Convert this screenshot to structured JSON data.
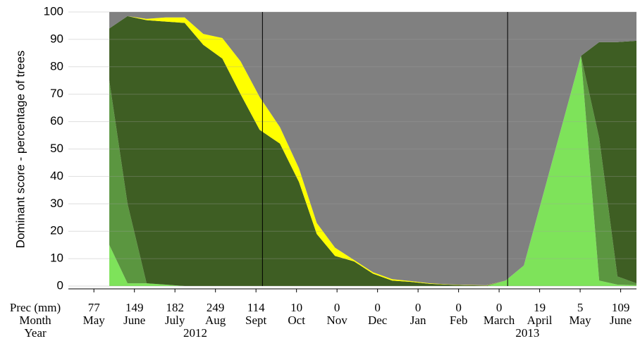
{
  "chart_data": {
    "type": "stacked_area",
    "y_label": "Dominant score - percentage of trees",
    "row_labels": [
      "Prec (mm)",
      "Month",
      "Year"
    ],
    "xlim": [
      -0.63,
      13.39
    ],
    "ylim": [
      0,
      100
    ],
    "yticks": [
      0,
      10,
      20,
      30,
      40,
      50,
      60,
      70,
      80,
      90,
      100
    ],
    "grid": true,
    "xticks": [
      {
        "value": 0,
        "label": "May"
      },
      {
        "value": 1,
        "label": "June"
      },
      {
        "value": 2,
        "label": "July"
      },
      {
        "value": 3,
        "label": "Aug"
      },
      {
        "value": 4,
        "label": "Sept"
      },
      {
        "value": 5,
        "label": "Oct"
      },
      {
        "value": 6,
        "label": "Nov"
      },
      {
        "value": 7,
        "label": "Dec"
      },
      {
        "value": 8,
        "label": "Jan"
      },
      {
        "value": 9,
        "label": "Feb"
      },
      {
        "value": 10,
        "label": "March"
      },
      {
        "value": 11,
        "label": "April"
      },
      {
        "value": 12,
        "label": "May"
      },
      {
        "value": 13,
        "label": "June"
      }
    ],
    "precipitation_mm": [
      77,
      149,
      182,
      249,
      114,
      10,
      0,
      0,
      0,
      0,
      0,
      19,
      5,
      109
    ],
    "year_labels": [
      {
        "value": 2.5,
        "label": "2012"
      },
      {
        "value": 10.7,
        "label": "2013"
      }
    ],
    "vlines": [
      4.16,
      10.21
    ],
    "x": [
      0.38,
      0.83,
      1.3,
      1.77,
      2.24,
      2.7,
      3.17,
      3.62,
      4.09,
      4.59,
      5.06,
      5.5,
      5.95,
      6.42,
      6.89,
      7.36,
      7.83,
      8.3,
      8.75,
      9.22,
      9.69,
      10.16,
      10.61,
      12.02,
      12.47,
      12.92,
      13.39
    ],
    "series": [
      {
        "color": "#7ee35a",
        "values": [
          15,
          1,
          1,
          0.5,
          0,
          0,
          0,
          0,
          0,
          0,
          0,
          0,
          0,
          0,
          0,
          0,
          0,
          0,
          0,
          0,
          0,
          2,
          7.5,
          84,
          2,
          0.5,
          0.3
        ]
      },
      {
        "color": "#5b9640",
        "values": [
          60,
          29,
          0,
          0,
          0,
          0,
          0,
          0,
          0,
          0,
          0,
          0,
          0,
          0,
          0,
          0,
          0,
          0,
          0,
          0,
          0,
          0,
          0,
          0,
          52,
          3,
          0.7
        ]
      },
      {
        "color": "#3e5e23",
        "values": [
          19,
          68.5,
          96,
          96,
          96,
          88,
          83,
          70,
          57,
          52,
          38,
          19,
          11,
          9,
          4.5,
          2,
          1.5,
          0.8,
          0.5,
          0.3,
          0.2,
          0,
          0,
          0,
          35,
          85.5,
          88.5
        ]
      },
      {
        "color": "#ffff00",
        "values": [
          0,
          0,
          0.5,
          1.5,
          2,
          4,
          7.5,
          12,
          12,
          6,
          5,
          4,
          3,
          0.5,
          0.5,
          0.5,
          0.3,
          0.2,
          0.1,
          0.1,
          0.1,
          0,
          0,
          0,
          0,
          0,
          0
        ]
      },
      {
        "color": "#808080",
        "values": [
          6,
          1.5,
          2.5,
          2,
          2,
          8,
          9.5,
          18,
          31,
          42,
          57,
          77,
          86,
          90.5,
          95,
          97.5,
          98.2,
          99,
          99.4,
          99.6,
          99.7,
          98,
          92.5,
          16,
          11,
          11,
          10.5
        ]
      }
    ]
  }
}
